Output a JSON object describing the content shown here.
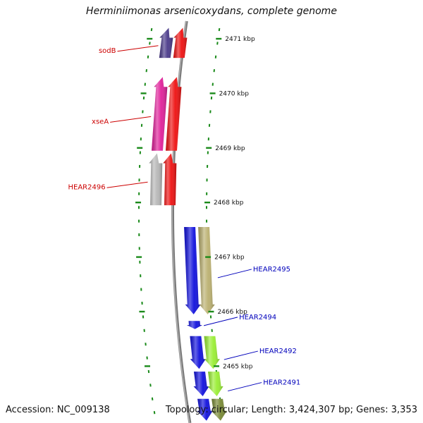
{
  "header": {
    "title": "Herminiimonas arsenicoxydans, complete genome"
  },
  "footer": {
    "accession": "Accession: NC_009138",
    "topology": "Topology: circular; Length: 3,424,307 bp; Genes: 3,353"
  },
  "colors": {
    "minus_label": "#cc0000",
    "plus_label": "#0000bb",
    "tick": "#1a8a1a",
    "axis": "#7a7a7a"
  },
  "ticks": [
    {
      "label": "2471 kbp",
      "pos": 2471
    },
    {
      "label": "2470 kbp",
      "pos": 2470
    },
    {
      "label": "2469 kbp",
      "pos": 2469
    },
    {
      "label": "2468 kbp",
      "pos": 2468
    },
    {
      "label": "2467 kbp",
      "pos": 2467
    },
    {
      "label": "2466 kbp",
      "pos": 2466
    },
    {
      "label": "2465 kbp",
      "pos": 2465
    }
  ],
  "genes": [
    {
      "strand": "minus",
      "color": "#4a3a8a",
      "label": "sodB",
      "start": 2471.2,
      "end": 2470.65,
      "track": "inner2"
    },
    {
      "strand": "minus",
      "color": "#ee1111",
      "label": "",
      "start": 2471.2,
      "end": 2470.65,
      "track": "inner1"
    },
    {
      "strand": "minus",
      "color": "#e0209a",
      "label": "xseA",
      "start": 2470.3,
      "end": 2468.95,
      "track": "inner2"
    },
    {
      "strand": "minus",
      "color": "#ee1111",
      "label": "",
      "start": 2470.3,
      "end": 2468.95,
      "track": "inner1"
    },
    {
      "strand": "minus",
      "color": "#b8b8b8",
      "label": "HEAR2496",
      "start": 2468.9,
      "end": 2467.95,
      "track": "inner2"
    },
    {
      "strand": "minus",
      "color": "#ee1111",
      "label": "",
      "start": 2468.9,
      "end": 2467.95,
      "track": "inner1"
    },
    {
      "strand": "plus",
      "color": "#1111dd",
      "label": "",
      "start": 2467.55,
      "end": 2465.95,
      "track": "outer1"
    },
    {
      "strand": "plus",
      "color": "#bbb070",
      "label": "HEAR2495",
      "start": 2467.55,
      "end": 2465.95,
      "track": "outer2"
    },
    {
      "strand": "plus",
      "color": "#1111dd",
      "label": "HEAR2494",
      "start": 2465.83,
      "end": 2465.68,
      "track": "outer1"
    },
    {
      "strand": "plus",
      "color": "#1111dd",
      "label": "",
      "start": 2465.55,
      "end": 2464.95,
      "track": "outer1"
    },
    {
      "strand": "plus",
      "color": "#99ee33",
      "label": "HEAR2492",
      "start": 2465.55,
      "end": 2464.95,
      "track": "outer2"
    },
    {
      "strand": "plus",
      "color": "#1111dd",
      "label": "",
      "start": 2464.9,
      "end": 2464.45,
      "track": "outer1"
    },
    {
      "strand": "plus",
      "color": "#99ee33",
      "label": "HEAR2491",
      "start": 2464.9,
      "end": 2464.45,
      "track": "outer2"
    },
    {
      "strand": "plus",
      "color": "#1111dd",
      "label": "",
      "start": 2464.4,
      "end": 2464.0,
      "track": "outer1"
    },
    {
      "strand": "plus",
      "color": "#778833",
      "label": "",
      "start": 2464.4,
      "end": 2464.0,
      "track": "outer2"
    }
  ]
}
